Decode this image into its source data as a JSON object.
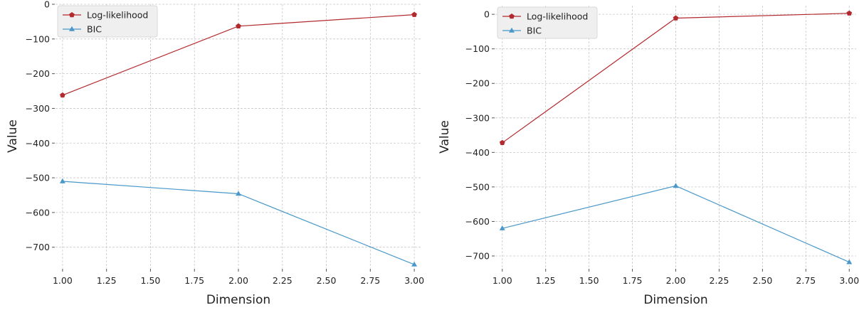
{
  "colors": {
    "log_likelihood": "#b2292e",
    "bic": "#4a98c9",
    "grid": "#c8c8c8",
    "axis_text": "#222222"
  },
  "chart_data": [
    {
      "type": "line",
      "title": "",
      "xlabel": "Dimension",
      "ylabel": "Value",
      "xlim": [
        0.96,
        3.04
      ],
      "ylim": [
        -760,
        0
      ],
      "xticks": [
        1.0,
        1.25,
        1.5,
        1.75,
        2.0,
        2.25,
        2.5,
        2.75,
        3.0
      ],
      "xtick_labels": [
        "1.00",
        "1.25",
        "1.50",
        "1.75",
        "2.00",
        "2.25",
        "2.50",
        "2.75",
        "3.00"
      ],
      "yticks": [
        0,
        -100,
        -200,
        -300,
        -400,
        -500,
        -600,
        -700
      ],
      "ytick_labels": [
        "0",
        "−100",
        "−200",
        "−300",
        "−400",
        "−500",
        "−600",
        "−700"
      ],
      "grid": true,
      "legend_position": "top-left",
      "series": [
        {
          "name": "Log-likelihood",
          "color": "#b2292e",
          "marker": "pentagon",
          "x": [
            1.0,
            2.0,
            3.0
          ],
          "values": [
            -262,
            -63,
            -30
          ]
        },
        {
          "name": "BIC",
          "color": "#4a98c9",
          "marker": "triangle",
          "x": [
            1.0,
            2.0,
            3.0
          ],
          "values": [
            -510,
            -546,
            -750
          ]
        }
      ]
    },
    {
      "type": "line",
      "title": "",
      "xlabel": "Dimension",
      "ylabel": "Value",
      "xlim": [
        0.96,
        3.04
      ],
      "ylim": [
        -735,
        25
      ],
      "xticks": [
        1.0,
        1.25,
        1.5,
        1.75,
        2.0,
        2.25,
        2.5,
        2.75,
        3.0
      ],
      "xtick_labels": [
        "1.00",
        "1.25",
        "1.50",
        "1.75",
        "2.00",
        "2.25",
        "2.50",
        "2.75",
        "3.00"
      ],
      "yticks": [
        0,
        -100,
        -200,
        -300,
        -400,
        -500,
        -600,
        -700
      ],
      "ytick_labels": [
        "0",
        "−100",
        "−200",
        "−300",
        "−400",
        "−500",
        "−600",
        "−700"
      ],
      "grid": true,
      "legend_position": "top-left",
      "series": [
        {
          "name": "Log-likelihood",
          "color": "#b2292e",
          "marker": "pentagon",
          "x": [
            1.0,
            2.0,
            3.0
          ],
          "values": [
            -372,
            -11,
            3
          ]
        },
        {
          "name": "BIC",
          "color": "#4a98c9",
          "marker": "triangle",
          "x": [
            1.0,
            2.0,
            3.0
          ],
          "values": [
            -620,
            -497,
            -718
          ]
        }
      ]
    }
  ]
}
